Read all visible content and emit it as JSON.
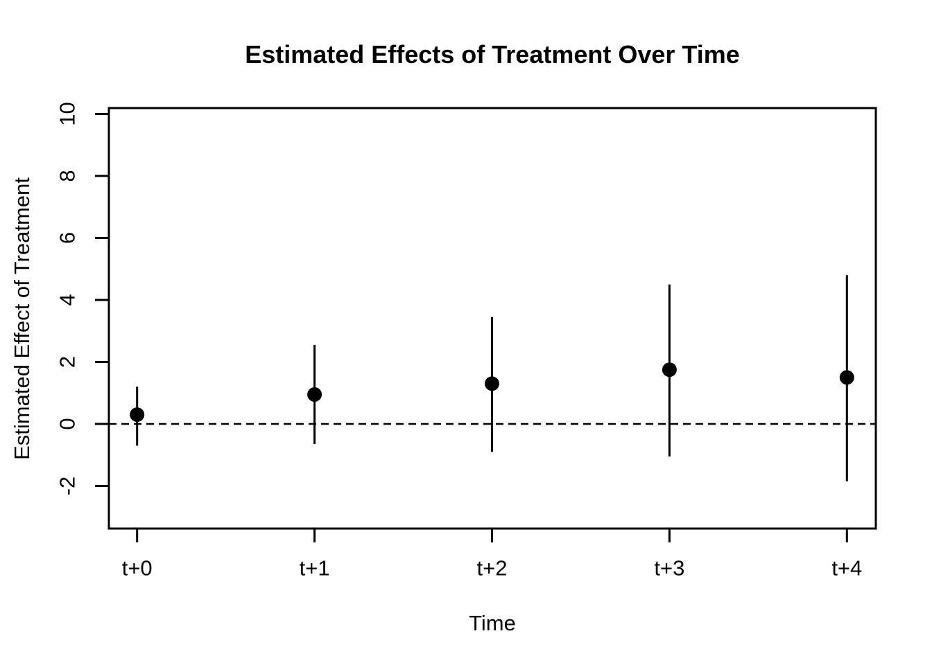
{
  "chart_data": {
    "type": "scatter",
    "subtype": "point-estimates-with-error-bars",
    "title": "Estimated Effects of Treatment Over Time",
    "xlabel": "Time",
    "ylabel": "Estimated Effect of Treatment",
    "categories": [
      "t+0",
      "t+1",
      "t+2",
      "t+3",
      "t+4"
    ],
    "series": [
      {
        "name": "estimate",
        "values": [
          0.3,
          0.95,
          1.3,
          1.75,
          1.5
        ]
      },
      {
        "name": "ci_lower",
        "values": [
          -0.7,
          -0.65,
          -0.9,
          -1.05,
          -1.85
        ]
      },
      {
        "name": "ci_upper",
        "values": [
          1.2,
          2.55,
          3.45,
          4.5,
          4.8
        ]
      }
    ],
    "y_ticks": [
      -2,
      0,
      2,
      4,
      6,
      8,
      10
    ],
    "ylim": [
      -3.35,
      10.2
    ],
    "reference_line_y": 0,
    "reference_line_style": "dashed",
    "grid": false,
    "legend_position": "none",
    "point_color": "#000000",
    "line_color": "#000000",
    "background_color": "#ffffff"
  }
}
